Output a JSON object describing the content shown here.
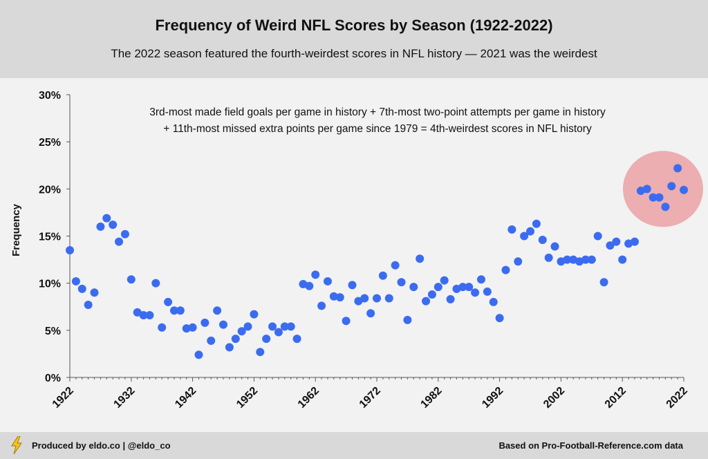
{
  "header": {
    "title": "Frequency of Weird NFL Scores by Season (1922-2022)",
    "subtitle": "The 2022 season featured the fourth-weirdest scores in NFL history — 2021 was the weirdest"
  },
  "footer": {
    "left": "Produced by eldo.co | @eldo_co",
    "right": "Based on Pro-Football-Reference.com data",
    "icon": "lightning-bolt-icon"
  },
  "colors": {
    "point": "#3b6cf0",
    "highlight": "#e8777a",
    "header_bg": "#d9d9d9",
    "plot_bg": "#f2f2f2"
  },
  "chart_data": {
    "type": "scatter",
    "title": "Frequency of Weird NFL Scores by Season (1922-2022)",
    "subtitle": "The 2022 season featured the fourth-weirdest scores in NFL history — 2021 was the weirdest",
    "xlabel": "",
    "ylabel": "Frequency",
    "xlim": [
      1922,
      2022
    ],
    "ylim": [
      0,
      30
    ],
    "x_ticks": [
      1922,
      1932,
      1942,
      1952,
      1962,
      1972,
      1982,
      1992,
      2002,
      2012,
      2022
    ],
    "y_ticks": [
      "0%",
      "5%",
      "10%",
      "15%",
      "20%",
      "25%",
      "30%"
    ],
    "grid": false,
    "annotation": [
      "3rd-most made field goals per game in history + 7th-most two-point attempts per game in history",
      "+ 11th-most missed extra points per game since 1979  = 4th-weirdest scores in NFL history"
    ],
    "highlight": {
      "x_range": [
        2015,
        2022
      ],
      "description": "recent seasons circled"
    },
    "series": [
      {
        "x": [
          1922,
          1923,
          1924,
          1925,
          1926,
          1927,
          1928,
          1929,
          1930,
          1931,
          1932,
          1933,
          1934,
          1935,
          1936,
          1937,
          1938,
          1939,
          1940,
          1941,
          1942,
          1943,
          1944,
          1945,
          1946,
          1947,
          1948,
          1949,
          1950,
          1951,
          1952,
          1953,
          1954,
          1955,
          1956,
          1957,
          1958,
          1959,
          1960,
          1961,
          1962,
          1963,
          1964,
          1965,
          1966,
          1967,
          1968,
          1969,
          1970,
          1971,
          1972,
          1973,
          1974,
          1975,
          1976,
          1977,
          1978,
          1979,
          1980,
          1981,
          1982,
          1983,
          1984,
          1985,
          1986,
          1987,
          1988,
          1989,
          1990,
          1991,
          1992,
          1993,
          1994,
          1995,
          1996,
          1997,
          1998,
          1999,
          2000,
          2001,
          2002,
          2003,
          2004,
          2005,
          2006,
          2007,
          2008,
          2009,
          2010,
          2011,
          2012,
          2013,
          2014,
          2015,
          2016,
          2017,
          2018,
          2019,
          2020,
          2021,
          2022
        ],
        "values": [
          13.5,
          10.2,
          9.4,
          7.7,
          9.0,
          16.0,
          16.9,
          16.2,
          14.4,
          15.2,
          10.4,
          6.9,
          6.6,
          6.6,
          10.0,
          5.3,
          8.0,
          7.1,
          7.1,
          5.2,
          5.3,
          2.4,
          5.8,
          3.9,
          7.1,
          5.6,
          3.2,
          4.1,
          4.9,
          5.4,
          6.7,
          2.7,
          4.1,
          5.4,
          4.8,
          5.4,
          5.4,
          4.1,
          9.9,
          9.7,
          10.9,
          7.6,
          10.2,
          8.6,
          8.5,
          6.0,
          9.8,
          8.1,
          8.4,
          6.8,
          8.4,
          10.8,
          8.4,
          11.9,
          10.1,
          6.1,
          9.6,
          12.6,
          8.1,
          8.8,
          9.6,
          10.3,
          8.3,
          9.4,
          9.6,
          9.6,
          9.0,
          10.4,
          9.1,
          8.0,
          6.3,
          11.4,
          15.7,
          12.3,
          15.0,
          15.5,
          16.3,
          14.6,
          12.7,
          13.9,
          12.3,
          12.5,
          12.5,
          12.3,
          12.5,
          12.5,
          15.0,
          10.1,
          14.0,
          14.4,
          12.5,
          14.2,
          14.4,
          19.8,
          20.0,
          19.1,
          19.1,
          18.1,
          20.3,
          22.2,
          19.9
        ]
      }
    ]
  }
}
